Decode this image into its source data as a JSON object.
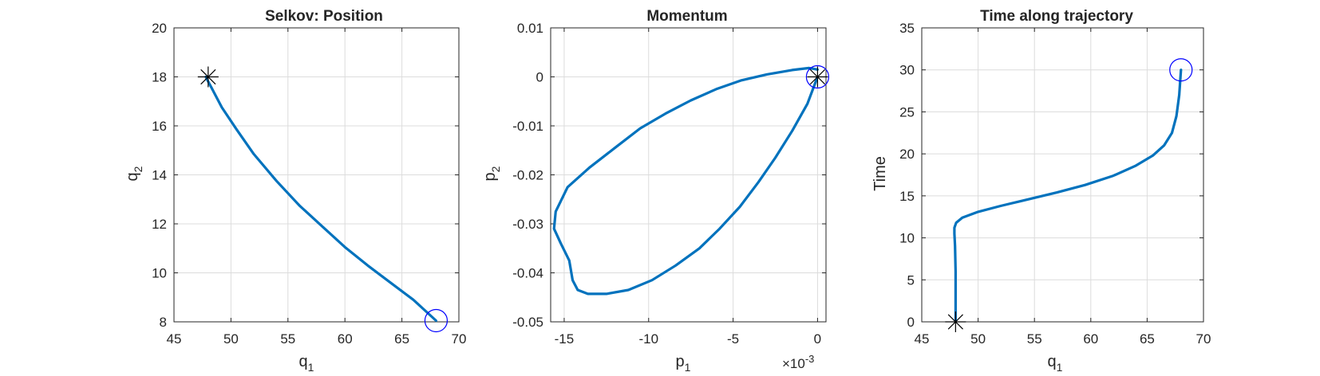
{
  "colors": {
    "series": "#0072BD",
    "start_marker": "#0000FF",
    "end_marker": "#000000",
    "axes": "#262626",
    "grid": "#dcdcdc"
  },
  "chart_data": [
    {
      "type": "line",
      "title": "Selkov: Position",
      "xlabel": "q",
      "xlabel_sub": "1",
      "ylabel": "q",
      "ylabel_sub": "2",
      "xlim": [
        45,
        70
      ],
      "ylim": [
        8,
        20
      ],
      "xticks": [
        45,
        50,
        55,
        60,
        65,
        70
      ],
      "yticks": [
        8,
        10,
        12,
        14,
        16,
        18,
        20
      ],
      "grid": true,
      "series": [
        {
          "x": [
            68.0,
            66.0,
            64.0,
            62.0,
            60.0,
            58.0,
            56.0,
            54.0,
            52.0,
            50.5,
            49.2,
            48.3,
            47.9,
            47.8
          ],
          "y": [
            8.05,
            8.9,
            9.6,
            10.3,
            11.05,
            11.9,
            12.75,
            13.75,
            14.85,
            15.85,
            16.75,
            17.55,
            17.9,
            18.0
          ]
        }
      ],
      "markers": [
        {
          "symbol": "circle",
          "x": 68.0,
          "y": 8.05
        },
        {
          "symbol": "asterisk",
          "x": 48.0,
          "y": 18.0
        }
      ]
    },
    {
      "type": "line",
      "title": "Momentum",
      "xlabel": "p",
      "xlabel_sub": "1",
      "ylabel": "p",
      "ylabel_sub": "2",
      "x_exponent": "-3",
      "xlim": [
        -15.8,
        0.5
      ],
      "ylim": [
        -0.05,
        0.01
      ],
      "xticks": [
        -15,
        -10,
        -5,
        0
      ],
      "xticklabels": [
        "-15",
        "-10",
        "-5",
        "0"
      ],
      "yticks": [
        -0.05,
        -0.04,
        -0.03,
        -0.02,
        -0.01,
        0,
        0.01
      ],
      "yticklabels": [
        "-0.05",
        "-0.04",
        "-0.03",
        "-0.02",
        "-0.01",
        "0",
        "0.01"
      ],
      "grid": true,
      "series": [
        {
          "x": [
            0.0,
            -0.6,
            -1.5,
            -2.5,
            -3.5,
            -4.6,
            -5.8,
            -7.0,
            -8.4,
            -9.8,
            -11.2,
            -12.5,
            -13.6,
            -14.2,
            -14.5,
            -14.7,
            -15.2,
            -15.6,
            -15.5,
            -14.8,
            -13.5,
            -12.0,
            -10.5,
            -9.0,
            -7.5,
            -6.0,
            -4.5,
            -3.0,
            -1.5,
            -0.5,
            0.0
          ],
          "y": [
            0.0,
            -0.0055,
            -0.011,
            -0.0165,
            -0.0215,
            -0.0265,
            -0.031,
            -0.035,
            -0.0385,
            -0.0415,
            -0.0435,
            -0.0443,
            -0.0443,
            -0.0435,
            -0.0415,
            -0.0375,
            -0.034,
            -0.031,
            -0.0275,
            -0.0225,
            -0.0185,
            -0.0145,
            -0.0105,
            -0.0075,
            -0.0048,
            -0.0025,
            -0.0007,
            0.0005,
            0.0014,
            0.0018,
            0.0015
          ]
        }
      ],
      "markers": [
        {
          "symbol": "circle",
          "x": 0.0,
          "y": 0.0
        },
        {
          "symbol": "asterisk",
          "x": 0.0,
          "y": 0.0
        }
      ]
    },
    {
      "type": "line",
      "title": "Time along trajectory",
      "xlabel": "q",
      "xlabel_sub": "1",
      "ylabel": "Time",
      "xlim": [
        45,
        70
      ],
      "ylim": [
        0,
        35
      ],
      "xticks": [
        45,
        50,
        55,
        60,
        65,
        70
      ],
      "yticks": [
        0,
        5,
        10,
        15,
        20,
        25,
        30,
        35
      ],
      "grid": true,
      "series": [
        {
          "x": [
            48.0,
            48.0,
            48.0,
            47.95,
            47.9,
            47.9,
            48.05,
            48.6,
            50.0,
            52.0,
            54.5,
            57.0,
            59.5,
            62.0,
            64.0,
            65.5,
            66.5,
            67.2,
            67.6,
            67.85,
            68.0
          ],
          "y": [
            0.0,
            3.0,
            6.0,
            9.0,
            10.5,
            11.2,
            11.8,
            12.4,
            13.1,
            13.8,
            14.6,
            15.4,
            16.3,
            17.4,
            18.6,
            19.8,
            21.0,
            22.5,
            24.5,
            27.0,
            30.0
          ]
        }
      ],
      "markers": [
        {
          "symbol": "circle",
          "x": 68.0,
          "y": 30.0
        },
        {
          "symbol": "asterisk",
          "x": 48.0,
          "y": 0.0
        }
      ]
    }
  ]
}
